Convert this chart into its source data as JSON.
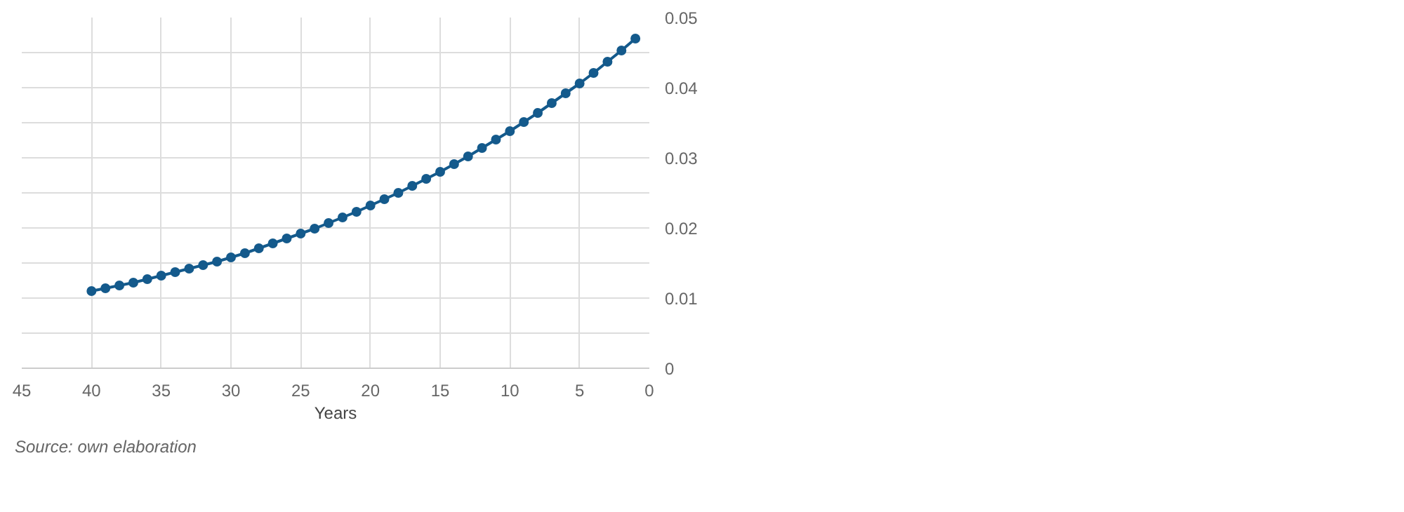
{
  "chart_data": {
    "type": "line",
    "xlabel": "Years",
    "annotations": [
      "Source: own elaboration"
    ],
    "x": [
      40,
      39,
      38,
      37,
      36,
      35,
      34,
      33,
      32,
      31,
      30,
      29,
      28,
      27,
      26,
      25,
      24,
      23,
      22,
      21,
      20,
      19,
      18,
      17,
      16,
      15,
      14,
      13,
      12,
      11,
      10,
      9,
      8,
      7,
      6,
      5,
      4,
      3,
      2,
      1
    ],
    "series": [
      {
        "color": "#145a8c",
        "values": [
          0.011,
          0.0114,
          0.0118,
          0.0122,
          0.0127,
          0.0132,
          0.0137,
          0.0142,
          0.0147,
          0.0152,
          0.0158,
          0.0164,
          0.0171,
          0.0178,
          0.0185,
          0.0192,
          0.0199,
          0.0207,
          0.0215,
          0.0223,
          0.0232,
          0.0241,
          0.025,
          0.026,
          0.027,
          0.028,
          0.0291,
          0.0302,
          0.0314,
          0.0326,
          0.0338,
          0.0351,
          0.0364,
          0.0378,
          0.0392,
          0.0406,
          0.0421,
          0.0437,
          0.0453,
          0.047
        ]
      }
    ],
    "xlim": [
      45,
      0
    ],
    "xticks": [
      45,
      40,
      35,
      30,
      25,
      20,
      15,
      10,
      5,
      0
    ],
    "ylim": [
      0,
      0.05
    ],
    "yticks": [
      0,
      {
        "value": 0.005,
        "label": null
      },
      0.01,
      {
        "value": 0.015,
        "label": null
      },
      0.02,
      {
        "value": 0.025,
        "label": null
      },
      0.03,
      {
        "value": 0.035,
        "label": null
      },
      0.04,
      {
        "value": 0.045,
        "label": null
      },
      0.05
    ],
    "grid": true,
    "marker": "circle",
    "line_style": "solid"
  }
}
